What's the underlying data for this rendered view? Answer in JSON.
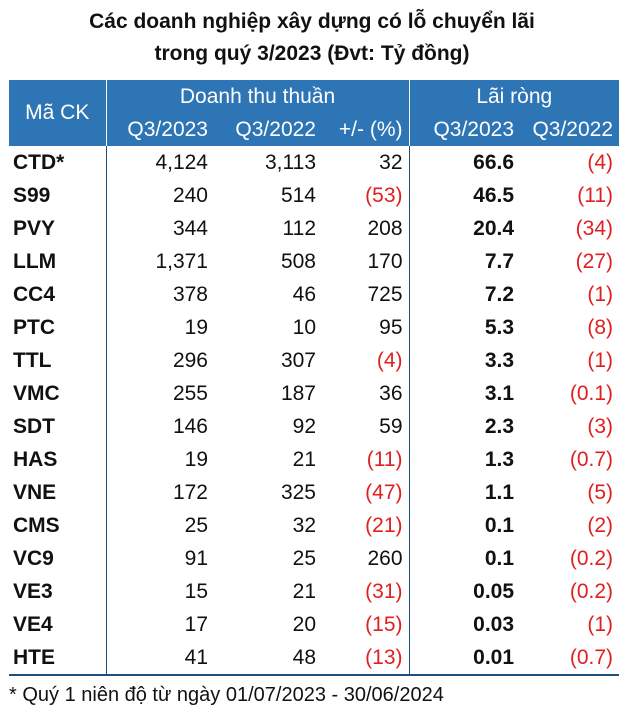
{
  "title": {
    "line1": "Các doanh nghiệp xây dựng có lỗ chuyển lãi",
    "line2": "trong quý 3/2023 (Đvt: Tỷ đồng)"
  },
  "table": {
    "headers": {
      "code": "Mã CK",
      "revenue_group": "Doanh thu thuần",
      "profit_group": "Lãi ròng",
      "rev_q3_2023": "Q3/2023",
      "rev_q3_2022": "Q3/2022",
      "rev_change": "+/- (%)",
      "profit_q3_2023": "Q3/2023",
      "profit_q3_2022": "Q3/2022"
    },
    "rows": [
      {
        "code": "CTD*",
        "rev_2023": "4,124",
        "rev_2022": "3,113",
        "change": "32",
        "profit_2023": "66.6",
        "profit_2022": "(4)"
      },
      {
        "code": "S99",
        "rev_2023": "240",
        "rev_2022": "514",
        "change": "(53)",
        "profit_2023": "46.5",
        "profit_2022": "(11)"
      },
      {
        "code": "PVY",
        "rev_2023": "344",
        "rev_2022": "112",
        "change": "208",
        "profit_2023": "20.4",
        "profit_2022": "(34)"
      },
      {
        "code": "LLM",
        "rev_2023": "1,371",
        "rev_2022": "508",
        "change": "170",
        "profit_2023": "7.7",
        "profit_2022": "(27)"
      },
      {
        "code": "CC4",
        "rev_2023": "378",
        "rev_2022": "46",
        "change": "725",
        "profit_2023": "7.2",
        "profit_2022": "(1)"
      },
      {
        "code": "PTC",
        "rev_2023": "19",
        "rev_2022": "10",
        "change": "95",
        "profit_2023": "5.3",
        "profit_2022": "(8)"
      },
      {
        "code": "TTL",
        "rev_2023": "296",
        "rev_2022": "307",
        "change": "(4)",
        "profit_2023": "3.3",
        "profit_2022": "(1)"
      },
      {
        "code": "VMC",
        "rev_2023": "255",
        "rev_2022": "187",
        "change": "36",
        "profit_2023": "3.1",
        "profit_2022": "(0.1)"
      },
      {
        "code": "SDT",
        "rev_2023": "146",
        "rev_2022": "92",
        "change": "59",
        "profit_2023": "2.3",
        "profit_2022": "(3)"
      },
      {
        "code": "HAS",
        "rev_2023": "19",
        "rev_2022": "21",
        "change": "(11)",
        "profit_2023": "1.3",
        "profit_2022": "(0.7)"
      },
      {
        "code": "VNE",
        "rev_2023": "172",
        "rev_2022": "325",
        "change": "(47)",
        "profit_2023": "1.1",
        "profit_2022": "(5)"
      },
      {
        "code": "CMS",
        "rev_2023": "25",
        "rev_2022": "32",
        "change": "(21)",
        "profit_2023": "0.1",
        "profit_2022": "(2)"
      },
      {
        "code": "VC9",
        "rev_2023": "91",
        "rev_2022": "25",
        "change": "260",
        "profit_2023": "0.1",
        "profit_2022": "(0.2)"
      },
      {
        "code": "VE3",
        "rev_2023": "15",
        "rev_2022": "21",
        "change": "(31)",
        "profit_2023": "0.05",
        "profit_2022": "(0.2)"
      },
      {
        "code": "VE4",
        "rev_2023": "17",
        "rev_2022": "20",
        "change": "(15)",
        "profit_2023": "0.03",
        "profit_2022": "(1)"
      },
      {
        "code": "HTE",
        "rev_2023": "41",
        "rev_2022": "48",
        "change": "(13)",
        "profit_2023": "0.01",
        "profit_2022": "(0.7)"
      }
    ]
  },
  "footnote": "* Quý 1 niên độ từ ngày 01/07/2023 - 30/06/2024",
  "colors": {
    "header_bg": "#2e75b6",
    "negative": "#e02020"
  }
}
